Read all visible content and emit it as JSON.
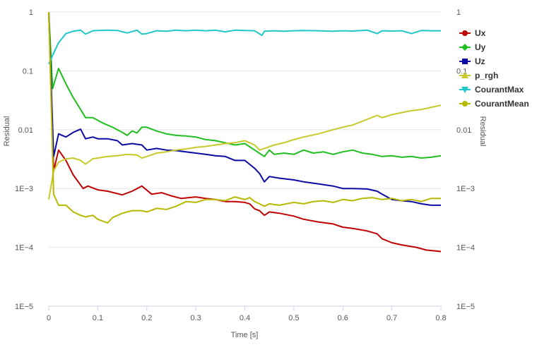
{
  "chart_data": {
    "type": "line",
    "xlabel": "Time [s]",
    "ylabel_left": "Residual",
    "ylabel_right": "Residual",
    "y_scale": "log",
    "xlim": [
      0,
      0.8
    ],
    "ylim": [
      1e-05,
      1
    ],
    "x_ticks": [
      0,
      0.1,
      0.2,
      0.3,
      0.4,
      0.5,
      0.6,
      0.7,
      0.8
    ],
    "x_tick_labels": [
      "0",
      "0.1",
      "0.2",
      "0.3",
      "0.4",
      "0.5",
      "0.6",
      "0.7",
      "0.8"
    ],
    "y_ticks": [
      1,
      0.1,
      0.01,
      0.001,
      0.0001,
      1e-05
    ],
    "y_tick_labels": [
      "1",
      "0.1",
      "0.01",
      "1E−3",
      "1E−4",
      "1E−5"
    ],
    "legend_position": "right",
    "series": [
      {
        "name": "Ux",
        "color": "#c00000",
        "marker": "circle",
        "points": [
          [
            0,
            1
          ],
          [
            0.01,
            0.002
          ],
          [
            0.02,
            0.0045
          ],
          [
            0.035,
            0.003
          ],
          [
            0.05,
            0.0017
          ],
          [
            0.07,
            0.001
          ],
          [
            0.08,
            0.0011
          ],
          [
            0.1,
            0.00095
          ],
          [
            0.12,
            0.0009
          ],
          [
            0.15,
            0.00078
          ],
          [
            0.17,
            0.0009
          ],
          [
            0.19,
            0.0011
          ],
          [
            0.21,
            0.0008
          ],
          [
            0.23,
            0.00085
          ],
          [
            0.25,
            0.00075
          ],
          [
            0.27,
            0.00068
          ],
          [
            0.3,
            0.00072
          ],
          [
            0.32,
            0.00068
          ],
          [
            0.34,
            0.00065
          ],
          [
            0.36,
            0.0006
          ],
          [
            0.38,
            0.0006
          ],
          [
            0.4,
            0.00058
          ],
          [
            0.41,
            0.00055
          ],
          [
            0.42,
            0.00045
          ],
          [
            0.43,
            0.00042
          ],
          [
            0.44,
            0.00035
          ],
          [
            0.45,
            0.0004
          ],
          [
            0.47,
            0.00038
          ],
          [
            0.5,
            0.00034
          ],
          [
            0.52,
            0.0003
          ],
          [
            0.55,
            0.00027
          ],
          [
            0.58,
            0.00025
          ],
          [
            0.6,
            0.00022
          ],
          [
            0.62,
            0.00021
          ],
          [
            0.65,
            0.00019
          ],
          [
            0.67,
            0.00017
          ],
          [
            0.68,
            0.00014
          ],
          [
            0.7,
            0.00012
          ],
          [
            0.72,
            0.00011
          ],
          [
            0.75,
            0.0001
          ],
          [
            0.77,
            9e-05
          ],
          [
            0.8,
            8.5e-05
          ]
        ]
      },
      {
        "name": "Uy",
        "color": "#1fbf1f",
        "marker": "diamond",
        "points": [
          [
            0,
            1
          ],
          [
            0.008,
            0.05
          ],
          [
            0.02,
            0.11
          ],
          [
            0.035,
            0.06
          ],
          [
            0.05,
            0.035
          ],
          [
            0.065,
            0.022
          ],
          [
            0.075,
            0.016
          ],
          [
            0.09,
            0.016
          ],
          [
            0.11,
            0.013
          ],
          [
            0.13,
            0.011
          ],
          [
            0.15,
            0.009
          ],
          [
            0.16,
            0.008
          ],
          [
            0.17,
            0.0095
          ],
          [
            0.18,
            0.0088
          ],
          [
            0.19,
            0.011
          ],
          [
            0.2,
            0.011
          ],
          [
            0.22,
            0.0095
          ],
          [
            0.24,
            0.0085
          ],
          [
            0.26,
            0.008
          ],
          [
            0.28,
            0.0078
          ],
          [
            0.3,
            0.0075
          ],
          [
            0.32,
            0.0068
          ],
          [
            0.34,
            0.0065
          ],
          [
            0.36,
            0.006
          ],
          [
            0.38,
            0.0055
          ],
          [
            0.4,
            0.0058
          ],
          [
            0.42,
            0.0045
          ],
          [
            0.44,
            0.0035
          ],
          [
            0.45,
            0.0045
          ],
          [
            0.46,
            0.0038
          ],
          [
            0.48,
            0.004
          ],
          [
            0.5,
            0.0038
          ],
          [
            0.52,
            0.0045
          ],
          [
            0.54,
            0.004
          ],
          [
            0.56,
            0.0042
          ],
          [
            0.58,
            0.0038
          ],
          [
            0.6,
            0.0042
          ],
          [
            0.62,
            0.0045
          ],
          [
            0.64,
            0.004
          ],
          [
            0.66,
            0.0038
          ],
          [
            0.68,
            0.0035
          ],
          [
            0.7,
            0.0036
          ],
          [
            0.72,
            0.0034
          ],
          [
            0.74,
            0.0035
          ],
          [
            0.76,
            0.0033
          ],
          [
            0.78,
            0.0034
          ],
          [
            0.8,
            0.0036
          ]
        ]
      },
      {
        "name": "Uz",
        "color": "#0a0aa5",
        "marker": "square",
        "points": [
          [
            0,
            1
          ],
          [
            0.01,
            0.0035
          ],
          [
            0.02,
            0.0085
          ],
          [
            0.035,
            0.0075
          ],
          [
            0.05,
            0.009
          ],
          [
            0.065,
            0.0102
          ],
          [
            0.075,
            0.007
          ],
          [
            0.09,
            0.0075
          ],
          [
            0.1,
            0.007
          ],
          [
            0.12,
            0.007
          ],
          [
            0.14,
            0.0065
          ],
          [
            0.15,
            0.0055
          ],
          [
            0.17,
            0.0058
          ],
          [
            0.19,
            0.0055
          ],
          [
            0.2,
            0.0045
          ],
          [
            0.22,
            0.0048
          ],
          [
            0.24,
            0.0045
          ],
          [
            0.26,
            0.0044
          ],
          [
            0.28,
            0.0042
          ],
          [
            0.3,
            0.004
          ],
          [
            0.32,
            0.0038
          ],
          [
            0.34,
            0.0036
          ],
          [
            0.36,
            0.0035
          ],
          [
            0.38,
            0.003
          ],
          [
            0.4,
            0.003
          ],
          [
            0.42,
            0.0022
          ],
          [
            0.43,
            0.0018
          ],
          [
            0.44,
            0.0013
          ],
          [
            0.45,
            0.0016
          ],
          [
            0.47,
            0.0015
          ],
          [
            0.5,
            0.0014
          ],
          [
            0.52,
            0.0013
          ],
          [
            0.55,
            0.0012
          ],
          [
            0.58,
            0.0011
          ],
          [
            0.6,
            0.001
          ],
          [
            0.62,
            0.001
          ],
          [
            0.65,
            0.00098
          ],
          [
            0.67,
            0.0009
          ],
          [
            0.68,
            0.0008
          ],
          [
            0.7,
            0.00065
          ],
          [
            0.72,
            0.00062
          ],
          [
            0.74,
            0.0006
          ],
          [
            0.76,
            0.00055
          ],
          [
            0.78,
            0.00052
          ],
          [
            0.8,
            0.00052
          ]
        ]
      },
      {
        "name": "p_rgh",
        "color": "#c8c82a",
        "marker": "triangle",
        "points": [
          [
            0,
            0.00065
          ],
          [
            0.01,
            0.002
          ],
          [
            0.02,
            0.0028
          ],
          [
            0.035,
            0.0032
          ],
          [
            0.05,
            0.0033
          ],
          [
            0.065,
            0.003
          ],
          [
            0.075,
            0.0026
          ],
          [
            0.09,
            0.0032
          ],
          [
            0.1,
            0.0033
          ],
          [
            0.12,
            0.0035
          ],
          [
            0.14,
            0.0036
          ],
          [
            0.16,
            0.0038
          ],
          [
            0.18,
            0.0037
          ],
          [
            0.19,
            0.0033
          ],
          [
            0.2,
            0.0035
          ],
          [
            0.22,
            0.004
          ],
          [
            0.24,
            0.0042
          ],
          [
            0.26,
            0.0045
          ],
          [
            0.28,
            0.0047
          ],
          [
            0.3,
            0.005
          ],
          [
            0.32,
            0.0052
          ],
          [
            0.34,
            0.0055
          ],
          [
            0.36,
            0.0058
          ],
          [
            0.38,
            0.006
          ],
          [
            0.4,
            0.0065
          ],
          [
            0.42,
            0.0055
          ],
          [
            0.43,
            0.0045
          ],
          [
            0.44,
            0.0048
          ],
          [
            0.46,
            0.0055
          ],
          [
            0.48,
            0.006
          ],
          [
            0.5,
            0.0068
          ],
          [
            0.52,
            0.0075
          ],
          [
            0.55,
            0.0085
          ],
          [
            0.58,
            0.01
          ],
          [
            0.6,
            0.011
          ],
          [
            0.62,
            0.012
          ],
          [
            0.65,
            0.015
          ],
          [
            0.67,
            0.0175
          ],
          [
            0.68,
            0.016
          ],
          [
            0.7,
            0.018
          ],
          [
            0.72,
            0.0195
          ],
          [
            0.74,
            0.021
          ],
          [
            0.76,
            0.022
          ],
          [
            0.78,
            0.024
          ],
          [
            0.8,
            0.026
          ]
        ]
      },
      {
        "name": "CourantMax",
        "color": "#1fc8c8",
        "marker": "triangle-down",
        "points": [
          [
            0,
            0.13
          ],
          [
            0.01,
            0.2
          ],
          [
            0.02,
            0.3
          ],
          [
            0.035,
            0.43
          ],
          [
            0.05,
            0.47
          ],
          [
            0.065,
            0.49
          ],
          [
            0.075,
            0.42
          ],
          [
            0.09,
            0.48
          ],
          [
            0.1,
            0.485
          ],
          [
            0.12,
            0.49
          ],
          [
            0.14,
            0.485
          ],
          [
            0.16,
            0.44
          ],
          [
            0.18,
            0.49
          ],
          [
            0.19,
            0.42
          ],
          [
            0.2,
            0.43
          ],
          [
            0.22,
            0.48
          ],
          [
            0.24,
            0.47
          ],
          [
            0.26,
            0.49
          ],
          [
            0.28,
            0.48
          ],
          [
            0.3,
            0.49
          ],
          [
            0.32,
            0.48
          ],
          [
            0.34,
            0.49
          ],
          [
            0.36,
            0.46
          ],
          [
            0.38,
            0.49
          ],
          [
            0.4,
            0.485
          ],
          [
            0.42,
            0.48
          ],
          [
            0.435,
            0.4
          ],
          [
            0.44,
            0.47
          ],
          [
            0.46,
            0.48
          ],
          [
            0.48,
            0.47
          ],
          [
            0.5,
            0.48
          ],
          [
            0.52,
            0.485
          ],
          [
            0.55,
            0.48
          ],
          [
            0.58,
            0.47
          ],
          [
            0.6,
            0.48
          ],
          [
            0.62,
            0.475
          ],
          [
            0.65,
            0.49
          ],
          [
            0.67,
            0.43
          ],
          [
            0.68,
            0.48
          ],
          [
            0.7,
            0.475
          ],
          [
            0.72,
            0.48
          ],
          [
            0.74,
            0.43
          ],
          [
            0.76,
            0.485
          ],
          [
            0.78,
            0.48
          ],
          [
            0.8,
            0.48
          ]
        ]
      },
      {
        "name": "CourantMean",
        "color": "#b8b800",
        "marker": "circle",
        "points": [
          [
            0,
            1
          ],
          [
            0.01,
            0.0008
          ],
          [
            0.02,
            0.00052
          ],
          [
            0.035,
            0.00052
          ],
          [
            0.05,
            0.0004
          ],
          [
            0.065,
            0.00035
          ],
          [
            0.075,
            0.00033
          ],
          [
            0.09,
            0.00035
          ],
          [
            0.1,
            0.0003
          ],
          [
            0.12,
            0.00026
          ],
          [
            0.13,
            0.00032
          ],
          [
            0.15,
            0.00038
          ],
          [
            0.17,
            0.00042
          ],
          [
            0.19,
            0.00042
          ],
          [
            0.2,
            0.0004
          ],
          [
            0.22,
            0.00046
          ],
          [
            0.24,
            0.00044
          ],
          [
            0.26,
            0.0005
          ],
          [
            0.28,
            0.0006
          ],
          [
            0.3,
            0.00058
          ],
          [
            0.32,
            0.00065
          ],
          [
            0.34,
            0.00065
          ],
          [
            0.36,
            0.00062
          ],
          [
            0.38,
            0.00072
          ],
          [
            0.4,
            0.00065
          ],
          [
            0.41,
            0.0007
          ],
          [
            0.42,
            0.0006
          ],
          [
            0.43,
            0.00055
          ],
          [
            0.44,
            0.0005
          ],
          [
            0.45,
            0.00055
          ],
          [
            0.47,
            0.00052
          ],
          [
            0.5,
            0.00058
          ],
          [
            0.52,
            0.00055
          ],
          [
            0.54,
            0.0006
          ],
          [
            0.56,
            0.00062
          ],
          [
            0.58,
            0.00058
          ],
          [
            0.6,
            0.00065
          ],
          [
            0.62,
            0.00062
          ],
          [
            0.64,
            0.00068
          ],
          [
            0.66,
            0.0007
          ],
          [
            0.68,
            0.00065
          ],
          [
            0.7,
            0.00068
          ],
          [
            0.72,
            0.00062
          ],
          [
            0.74,
            0.00065
          ],
          [
            0.76,
            0.0006
          ],
          [
            0.78,
            0.00068
          ],
          [
            0.8,
            0.00068
          ]
        ]
      }
    ]
  }
}
